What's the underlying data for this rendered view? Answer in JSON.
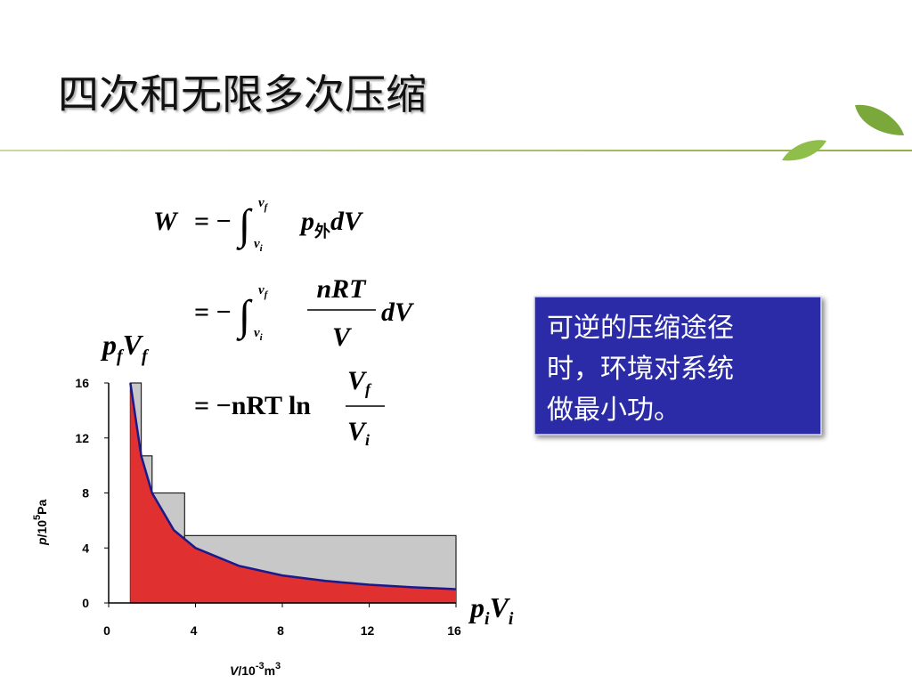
{
  "title": "四次和无限多次压缩",
  "equations": {
    "line1": {
      "lhs": "W",
      "eq": "= −",
      "int": "∫",
      "upper": [
        "v",
        "f"
      ],
      "lower": [
        "v",
        "i"
      ],
      "integrand": [
        "p",
        "外",
        "dV"
      ]
    },
    "line2": {
      "eq": "= −",
      "int": "∫",
      "upper": [
        "v",
        "f"
      ],
      "lower": [
        "v",
        "i"
      ],
      "numerator": "nRT",
      "denominator": "V",
      "tail": "dV"
    },
    "line3": {
      "eq": "= −nRT ln",
      "numerator": [
        "V",
        "f"
      ],
      "denominator": [
        "V",
        "i"
      ]
    }
  },
  "note": [
    "可逆的压缩途径",
    "时，环境对系统",
    "做最小功。"
  ],
  "chart_data": {
    "type": "area",
    "xlabel": [
      "V",
      "/10",
      "-3",
      "m",
      "3"
    ],
    "ylabel": [
      "p",
      "/10",
      "5",
      "Pa"
    ],
    "xlim": [
      0,
      16
    ],
    "ylim": [
      0,
      16
    ],
    "xticks": [
      0,
      4,
      8,
      12,
      16
    ],
    "yticks": [
      0,
      4,
      8,
      12,
      16
    ],
    "annotations": [
      [
        "p",
        "f",
        "V",
        "f"
      ],
      [
        "p",
        "i",
        "V",
        "i"
      ]
    ],
    "series": [
      {
        "style": "step",
        "color": "#c8c8c8",
        "bins": [
          1,
          1.5,
          2,
          3.5,
          16
        ],
        "values": [
          16,
          10.7,
          8,
          4.9
        ]
      },
      {
        "style": "curve",
        "color": "#e03030",
        "line_color": "#1a1a8c",
        "x": [
          1,
          1.5,
          2,
          3,
          4,
          6,
          8,
          10,
          12,
          14,
          16
        ],
        "values": [
          16,
          10.7,
          8,
          5.3,
          4,
          2.7,
          2,
          1.6,
          1.33,
          1.14,
          1
        ]
      }
    ]
  }
}
